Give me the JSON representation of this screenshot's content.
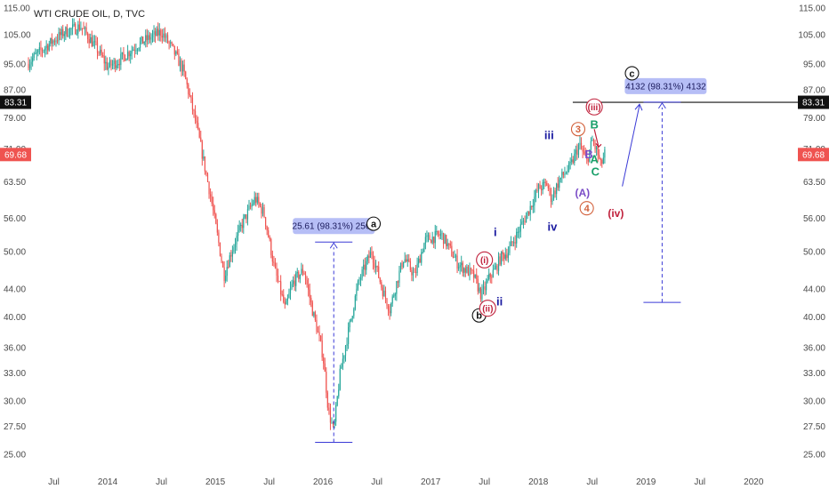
{
  "chart_data": {
    "type": "line",
    "title": "WTI CRUDE OIL, D, TVC",
    "x_ticks": [
      "Jul",
      "2014",
      "Jul",
      "2015",
      "Jul",
      "2016",
      "Jul",
      "2017",
      "Jul",
      "2018",
      "Jul",
      "2019",
      "Jul",
      "2020"
    ],
    "y_ticks": [
      "115.00",
      "105.00",
      "95.00",
      "87.00",
      "79.00",
      "71.00",
      "63.50",
      "56.00",
      "50.00",
      "44.00",
      "40.00",
      "36.00",
      "33.00",
      "30.00",
      "27.50",
      "25.00"
    ],
    "ylim": [
      25,
      115
    ],
    "y_scale": "log",
    "grid": false,
    "series": [
      {
        "values": [
          [
            2013.25,
            95
          ],
          [
            2013.4,
            100
          ],
          [
            2013.6,
            106
          ],
          [
            2013.75,
            108
          ],
          [
            2013.9,
            100
          ],
          [
            2014.0,
            94
          ],
          [
            2014.1,
            96
          ],
          [
            2014.3,
            102
          ],
          [
            2014.5,
            106
          ],
          [
            2014.6,
            100
          ],
          [
            2014.7,
            93
          ],
          [
            2014.8,
            80
          ],
          [
            2014.9,
            67
          ],
          [
            2015.0,
            55
          ],
          [
            2015.08,
            46
          ],
          [
            2015.15,
            50
          ],
          [
            2015.25,
            55
          ],
          [
            2015.37,
            60
          ],
          [
            2015.45,
            57
          ],
          [
            2015.55,
            47
          ],
          [
            2015.65,
            41
          ],
          [
            2015.72,
            45
          ],
          [
            2015.82,
            47
          ],
          [
            2015.9,
            41
          ],
          [
            2016.0,
            35
          ],
          [
            2016.05,
            29
          ],
          [
            2016.1,
            27
          ],
          [
            2016.16,
            33
          ],
          [
            2016.25,
            39
          ],
          [
            2016.33,
            45
          ],
          [
            2016.45,
            50
          ],
          [
            2016.55,
            44
          ],
          [
            2016.62,
            41
          ],
          [
            2016.75,
            49
          ],
          [
            2016.85,
            46
          ],
          [
            2016.95,
            52
          ],
          [
            2017.1,
            53
          ],
          [
            2017.25,
            48
          ],
          [
            2017.4,
            46
          ],
          [
            2017.47,
            43
          ],
          [
            2017.5,
            44
          ],
          [
            2017.55,
            46
          ],
          [
            2017.6,
            47
          ],
          [
            2017.65,
            49
          ],
          [
            2017.72,
            50
          ],
          [
            2017.8,
            53
          ],
          [
            2017.9,
            57
          ],
          [
            2018.0,
            62
          ],
          [
            2018.08,
            63
          ],
          [
            2018.12,
            60
          ],
          [
            2018.2,
            64
          ],
          [
            2018.3,
            67
          ],
          [
            2018.38,
            72
          ],
          [
            2018.45,
            68
          ],
          [
            2018.5,
            73
          ],
          [
            2018.55,
            70
          ],
          [
            2018.58,
            67
          ],
          [
            2018.62,
            70
          ]
        ]
      }
    ],
    "last_price": "69.68",
    "horizontal_level": "83.31",
    "measures": [
      {
        "label": "25.61 (98.31%) 2561",
        "from": [
          2016.1,
          26.05
        ],
        "to": [
          2016.1,
          51.66
        ]
      },
      {
        "label": "4132 (98.31%) 4132",
        "from": [
          2019.15,
          42.03
        ],
        "to": [
          2019.15,
          83.35
        ]
      }
    ],
    "wave_labels": [
      {
        "text": "a",
        "x": 2016.47,
        "y": 55.0,
        "color": "#111111",
        "circle": true
      },
      {
        "text": "b",
        "x": 2017.45,
        "y": 40.2,
        "color": "#111111",
        "circle": true
      },
      {
        "text": "c",
        "x": 2018.87,
        "y": 92.0,
        "color": "#111111",
        "circle": true
      },
      {
        "text": "i",
        "x": 2017.6,
        "y": 53.5,
        "color": "#1a1aa0",
        "circle": false
      },
      {
        "text": "ii",
        "x": 2017.64,
        "y": 42.2,
        "color": "#1a1aa0",
        "circle": false
      },
      {
        "text": "iii",
        "x": 2018.1,
        "y": 74.5,
        "color": "#1a1aa0",
        "circle": false
      },
      {
        "text": "iv",
        "x": 2018.13,
        "y": 54.5,
        "color": "#1a1aa0",
        "circle": false
      },
      {
        "text": "(i)",
        "x": 2017.5,
        "y": 48.6,
        "color": "#c0213c",
        "circle": true
      },
      {
        "text": "(ii)",
        "x": 2017.53,
        "y": 41.2,
        "color": "#c0213c",
        "circle": true
      },
      {
        "text": "(iii)",
        "x": 2018.52,
        "y": 82.0,
        "color": "#c0213c",
        "circle": true
      },
      {
        "text": "(iv)",
        "x": 2018.72,
        "y": 57.0,
        "color": "#c0213c",
        "circle": false
      },
      {
        "text": "3",
        "x": 2018.37,
        "y": 76.0,
        "color": "#d2603a",
        "circle": true
      },
      {
        "text": "4",
        "x": 2018.45,
        "y": 58.0,
        "color": "#d2603a",
        "circle": true
      },
      {
        "text": "B",
        "x": 2018.47,
        "y": 69.8,
        "color": "#7a4cc7",
        "circle": false
      },
      {
        "text": "(A)",
        "x": 2018.41,
        "y": 61.2,
        "color": "#7a4cc7",
        "circle": false
      },
      {
        "text": "A",
        "x": 2018.52,
        "y": 68.6,
        "color": "#1aa06a",
        "circle": false
      },
      {
        "text": "B",
        "x": 2018.52,
        "y": 77.3,
        "color": "#1aa06a",
        "circle": false
      },
      {
        "text": "C",
        "x": 2018.53,
        "y": 65.8,
        "color": "#1aa06a",
        "circle": false
      }
    ]
  },
  "colors": {
    "up": "#26a69a",
    "down": "#ef5350",
    "measure": "#3a3ad6",
    "measure_box": "#a9b3f5",
    "last_price_bg": "#ef5350",
    "level_bg": "#111111"
  }
}
